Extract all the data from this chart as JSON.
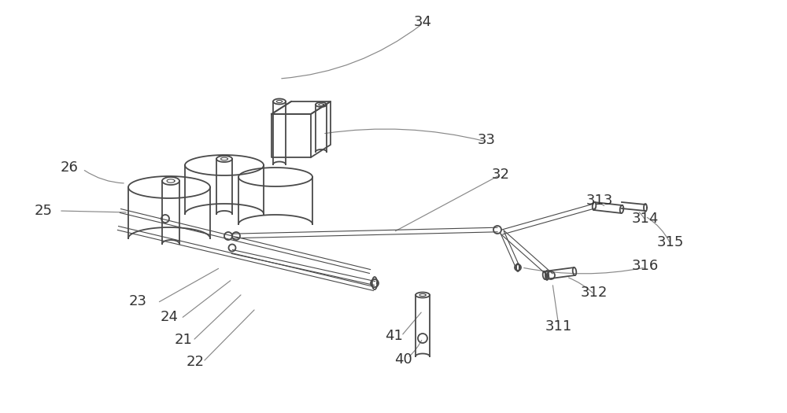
{
  "bg_color": "#ffffff",
  "line_color": "#4a4a4a",
  "label_color": "#333333",
  "label_fontsize": 13,
  "leader_line_color": "#888888",
  "lw_main": 1.3,
  "lw_thin": 0.8,
  "lw_label": 0.85
}
